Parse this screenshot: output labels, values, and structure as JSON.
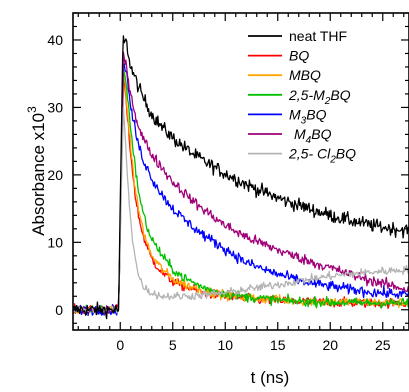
{
  "chart_data": {
    "type": "line",
    "xlabel": "t (ns)",
    "ylabel": "Absorbance x10",
    "ylabel_exponent": "3",
    "xlim": [
      -4.5,
      27.5
    ],
    "ylim": [
      -3,
      44
    ],
    "x_ticks": [
      0,
      5,
      10,
      15,
      20,
      25
    ],
    "y_ticks": [
      0,
      10,
      20,
      30,
      40
    ],
    "grid": false,
    "legend_position": "top-right",
    "series": [
      {
        "name": "neat THF",
        "color": "#000000",
        "noise": 1.3,
        "points": [
          [
            -4.5,
            0
          ],
          [
            -0.15,
            0
          ],
          [
            0.05,
            20
          ],
          [
            0.25,
            40
          ],
          [
            0.6,
            39.5
          ],
          [
            1,
            36
          ],
          [
            2,
            32
          ],
          [
            3,
            29
          ],
          [
            4,
            27
          ],
          [
            5,
            25.5
          ],
          [
            6,
            24.2
          ],
          [
            7,
            23
          ],
          [
            8,
            22
          ],
          [
            10,
            20.2
          ],
          [
            12,
            18.6
          ],
          [
            14,
            17.2
          ],
          [
            16,
            16
          ],
          [
            18,
            15
          ],
          [
            20,
            14
          ],
          [
            22,
            13.2
          ],
          [
            24,
            12.5
          ],
          [
            26,
            12
          ],
          [
            27.5,
            11.8
          ]
        ]
      },
      {
        "name": "BQ",
        "name_main": "BQ",
        "color": "#ff0000",
        "noise": 0.9,
        "points": [
          [
            -4.5,
            0
          ],
          [
            -0.15,
            0
          ],
          [
            0.05,
            16
          ],
          [
            0.3,
            35
          ],
          [
            0.6,
            30
          ],
          [
            1,
            23
          ],
          [
            1.5,
            16
          ],
          [
            2,
            12
          ],
          [
            2.5,
            9.5
          ],
          [
            3,
            7.5
          ],
          [
            4,
            5.5
          ],
          [
            5,
            4.2
          ],
          [
            6,
            3.5
          ],
          [
            8,
            2.5
          ],
          [
            10,
            2
          ],
          [
            12,
            1.6
          ],
          [
            16,
            1.3
          ],
          [
            20,
            1.1
          ],
          [
            24,
            1
          ],
          [
            27.5,
            1
          ]
        ]
      },
      {
        "name": "MBQ",
        "name_main": "MBQ",
        "color": "#ffa500",
        "noise": 0.9,
        "points": [
          [
            -4.5,
            0
          ],
          [
            -0.15,
            0
          ],
          [
            0.05,
            16
          ],
          [
            0.3,
            35
          ],
          [
            0.6,
            31
          ],
          [
            1,
            24
          ],
          [
            1.5,
            17
          ],
          [
            2,
            13
          ],
          [
            2.5,
            10
          ],
          [
            3,
            8
          ],
          [
            4,
            6
          ],
          [
            5,
            4.6
          ],
          [
            6,
            3.8
          ],
          [
            8,
            2.8
          ],
          [
            10,
            2.2
          ],
          [
            12,
            1.8
          ],
          [
            16,
            1.4
          ],
          [
            20,
            1.2
          ],
          [
            24,
            1.1
          ],
          [
            27.5,
            1
          ]
        ]
      },
      {
        "name": "2,5-M2BQ",
        "name_main": "2,5-M",
        "name_sub": "2",
        "name_tail": "BQ",
        "color": "#00c000",
        "noise": 0.9,
        "points": [
          [
            -4.5,
            0
          ],
          [
            -0.15,
            0
          ],
          [
            0.05,
            16
          ],
          [
            0.3,
            36
          ],
          [
            0.6,
            33
          ],
          [
            1,
            27
          ],
          [
            1.5,
            20
          ],
          [
            2,
            15.5
          ],
          [
            2.5,
            12.5
          ],
          [
            3,
            10.5
          ],
          [
            4,
            8
          ],
          [
            5,
            6
          ],
          [
            6,
            4.8
          ],
          [
            8,
            3.2
          ],
          [
            10,
            2.4
          ],
          [
            12,
            1.9
          ],
          [
            16,
            1.3
          ],
          [
            20,
            1.1
          ],
          [
            24,
            1
          ],
          [
            27.5,
            1
          ]
        ]
      },
      {
        "name": "M3BQ",
        "name_main": "M",
        "name_sub": "3",
        "name_tail": "BQ",
        "color": "#0000ff",
        "noise": 1.0,
        "points": [
          [
            -4.5,
            0
          ],
          [
            -0.15,
            0
          ],
          [
            0.05,
            16
          ],
          [
            0.3,
            37
          ],
          [
            0.6,
            35
          ],
          [
            1,
            30
          ],
          [
            1.5,
            26
          ],
          [
            2,
            23
          ],
          [
            3,
            19.5
          ],
          [
            4,
            17
          ],
          [
            5,
            15
          ],
          [
            6,
            13.5
          ],
          [
            7,
            12.2
          ],
          [
            8,
            11
          ],
          [
            10,
            9
          ],
          [
            12,
            7
          ],
          [
            14,
            5.8
          ],
          [
            16,
            4.8
          ],
          [
            18,
            4
          ],
          [
            20,
            3.5
          ],
          [
            22,
            3
          ],
          [
            24,
            2.6
          ],
          [
            27.5,
            2.2
          ]
        ]
      },
      {
        "name": "M4BQ",
        "name_main": "M",
        "name_sub": "4",
        "name_tail": "BQ",
        "color": "#a00078",
        "noise": 1.0,
        "points": [
          [
            -4.5,
            0
          ],
          [
            -0.15,
            0
          ],
          [
            0.05,
            16
          ],
          [
            0.3,
            37.5
          ],
          [
            0.6,
            36
          ],
          [
            1,
            32
          ],
          [
            1.5,
            28.5
          ],
          [
            2,
            26
          ],
          [
            3,
            23
          ],
          [
            4,
            21
          ],
          [
            5,
            19
          ],
          [
            6,
            17.5
          ],
          [
            7,
            16
          ],
          [
            8,
            14.8
          ],
          [
            10,
            12.5
          ],
          [
            12,
            10.8
          ],
          [
            14,
            9.5
          ],
          [
            16,
            8.3
          ],
          [
            18,
            7.2
          ],
          [
            20,
            6.2
          ],
          [
            22,
            5.2
          ],
          [
            24,
            4.3
          ],
          [
            26,
            3.5
          ],
          [
            27.5,
            3
          ]
        ]
      },
      {
        "name": "2,5-Cl2BQ",
        "name_main": "2,5- Cl",
        "name_sub": "2",
        "name_tail": "BQ",
        "color": "#b4b4b4",
        "noise": 0.8,
        "points": [
          [
            -4.5,
            0
          ],
          [
            -0.15,
            0
          ],
          [
            0.05,
            14
          ],
          [
            0.3,
            30
          ],
          [
            0.5,
            25
          ],
          [
            0.8,
            17
          ],
          [
            1.2,
            10
          ],
          [
            1.6,
            6
          ],
          [
            2,
            4
          ],
          [
            2.5,
            3
          ],
          [
            3,
            2.5
          ],
          [
            4,
            2
          ],
          [
            6,
            2
          ],
          [
            8,
            2.2
          ],
          [
            10,
            2.5
          ],
          [
            12,
            3
          ],
          [
            14,
            3.5
          ],
          [
            16,
            4
          ],
          [
            18,
            4.5
          ],
          [
            20,
            5
          ],
          [
            24,
            5.6
          ],
          [
            27.5,
            6
          ]
        ]
      }
    ]
  }
}
